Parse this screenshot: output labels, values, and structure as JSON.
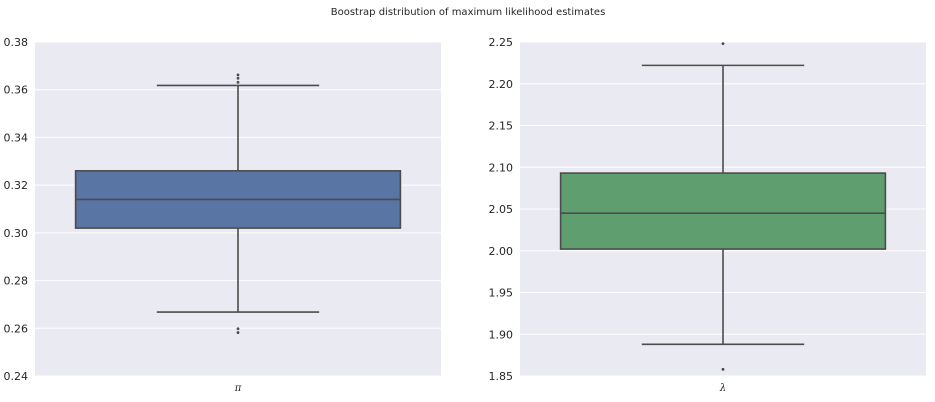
{
  "figure": {
    "title": "Boostrap distribution of maximum likelihood estimates"
  },
  "chart_data": [
    {
      "type": "box",
      "title": "",
      "categories": [
        "π"
      ],
      "xlabel": "",
      "ylabel": "",
      "ylim": [
        0.24,
        0.38
      ],
      "yticks": [
        0.24,
        0.26,
        0.28,
        0.3,
        0.32,
        0.34,
        0.36,
        0.38
      ],
      "ytick_labels": [
        "0.24",
        "0.26",
        "0.28",
        "0.30",
        "0.32",
        "0.34",
        "0.36",
        "0.38"
      ],
      "grid": true,
      "color": "#5975a4",
      "box": {
        "q1": 0.302,
        "median": 0.314,
        "q3": 0.326,
        "whisker_low": 0.2668,
        "whisker_high": 0.3618,
        "outliers": [
          0.2582,
          0.2598,
          0.3631,
          0.3648,
          0.3662
        ]
      }
    },
    {
      "type": "box",
      "title": "",
      "categories": [
        "λ"
      ],
      "xlabel": "",
      "ylabel": "",
      "ylim": [
        1.85,
        2.25
      ],
      "yticks": [
        1.85,
        1.9,
        1.95,
        2.0,
        2.05,
        2.1,
        2.15,
        2.2,
        2.25
      ],
      "ytick_labels": [
        "1.85",
        "1.90",
        "1.95",
        "2.00",
        "2.05",
        "2.10",
        "2.15",
        "2.20",
        "2.25"
      ],
      "grid": true,
      "color": "#5f9e6e",
      "box": {
        "q1": 2.002,
        "median": 2.045,
        "q3": 2.093,
        "whisker_low": 1.888,
        "whisker_high": 2.222,
        "outliers": [
          1.858,
          2.248
        ]
      }
    }
  ]
}
